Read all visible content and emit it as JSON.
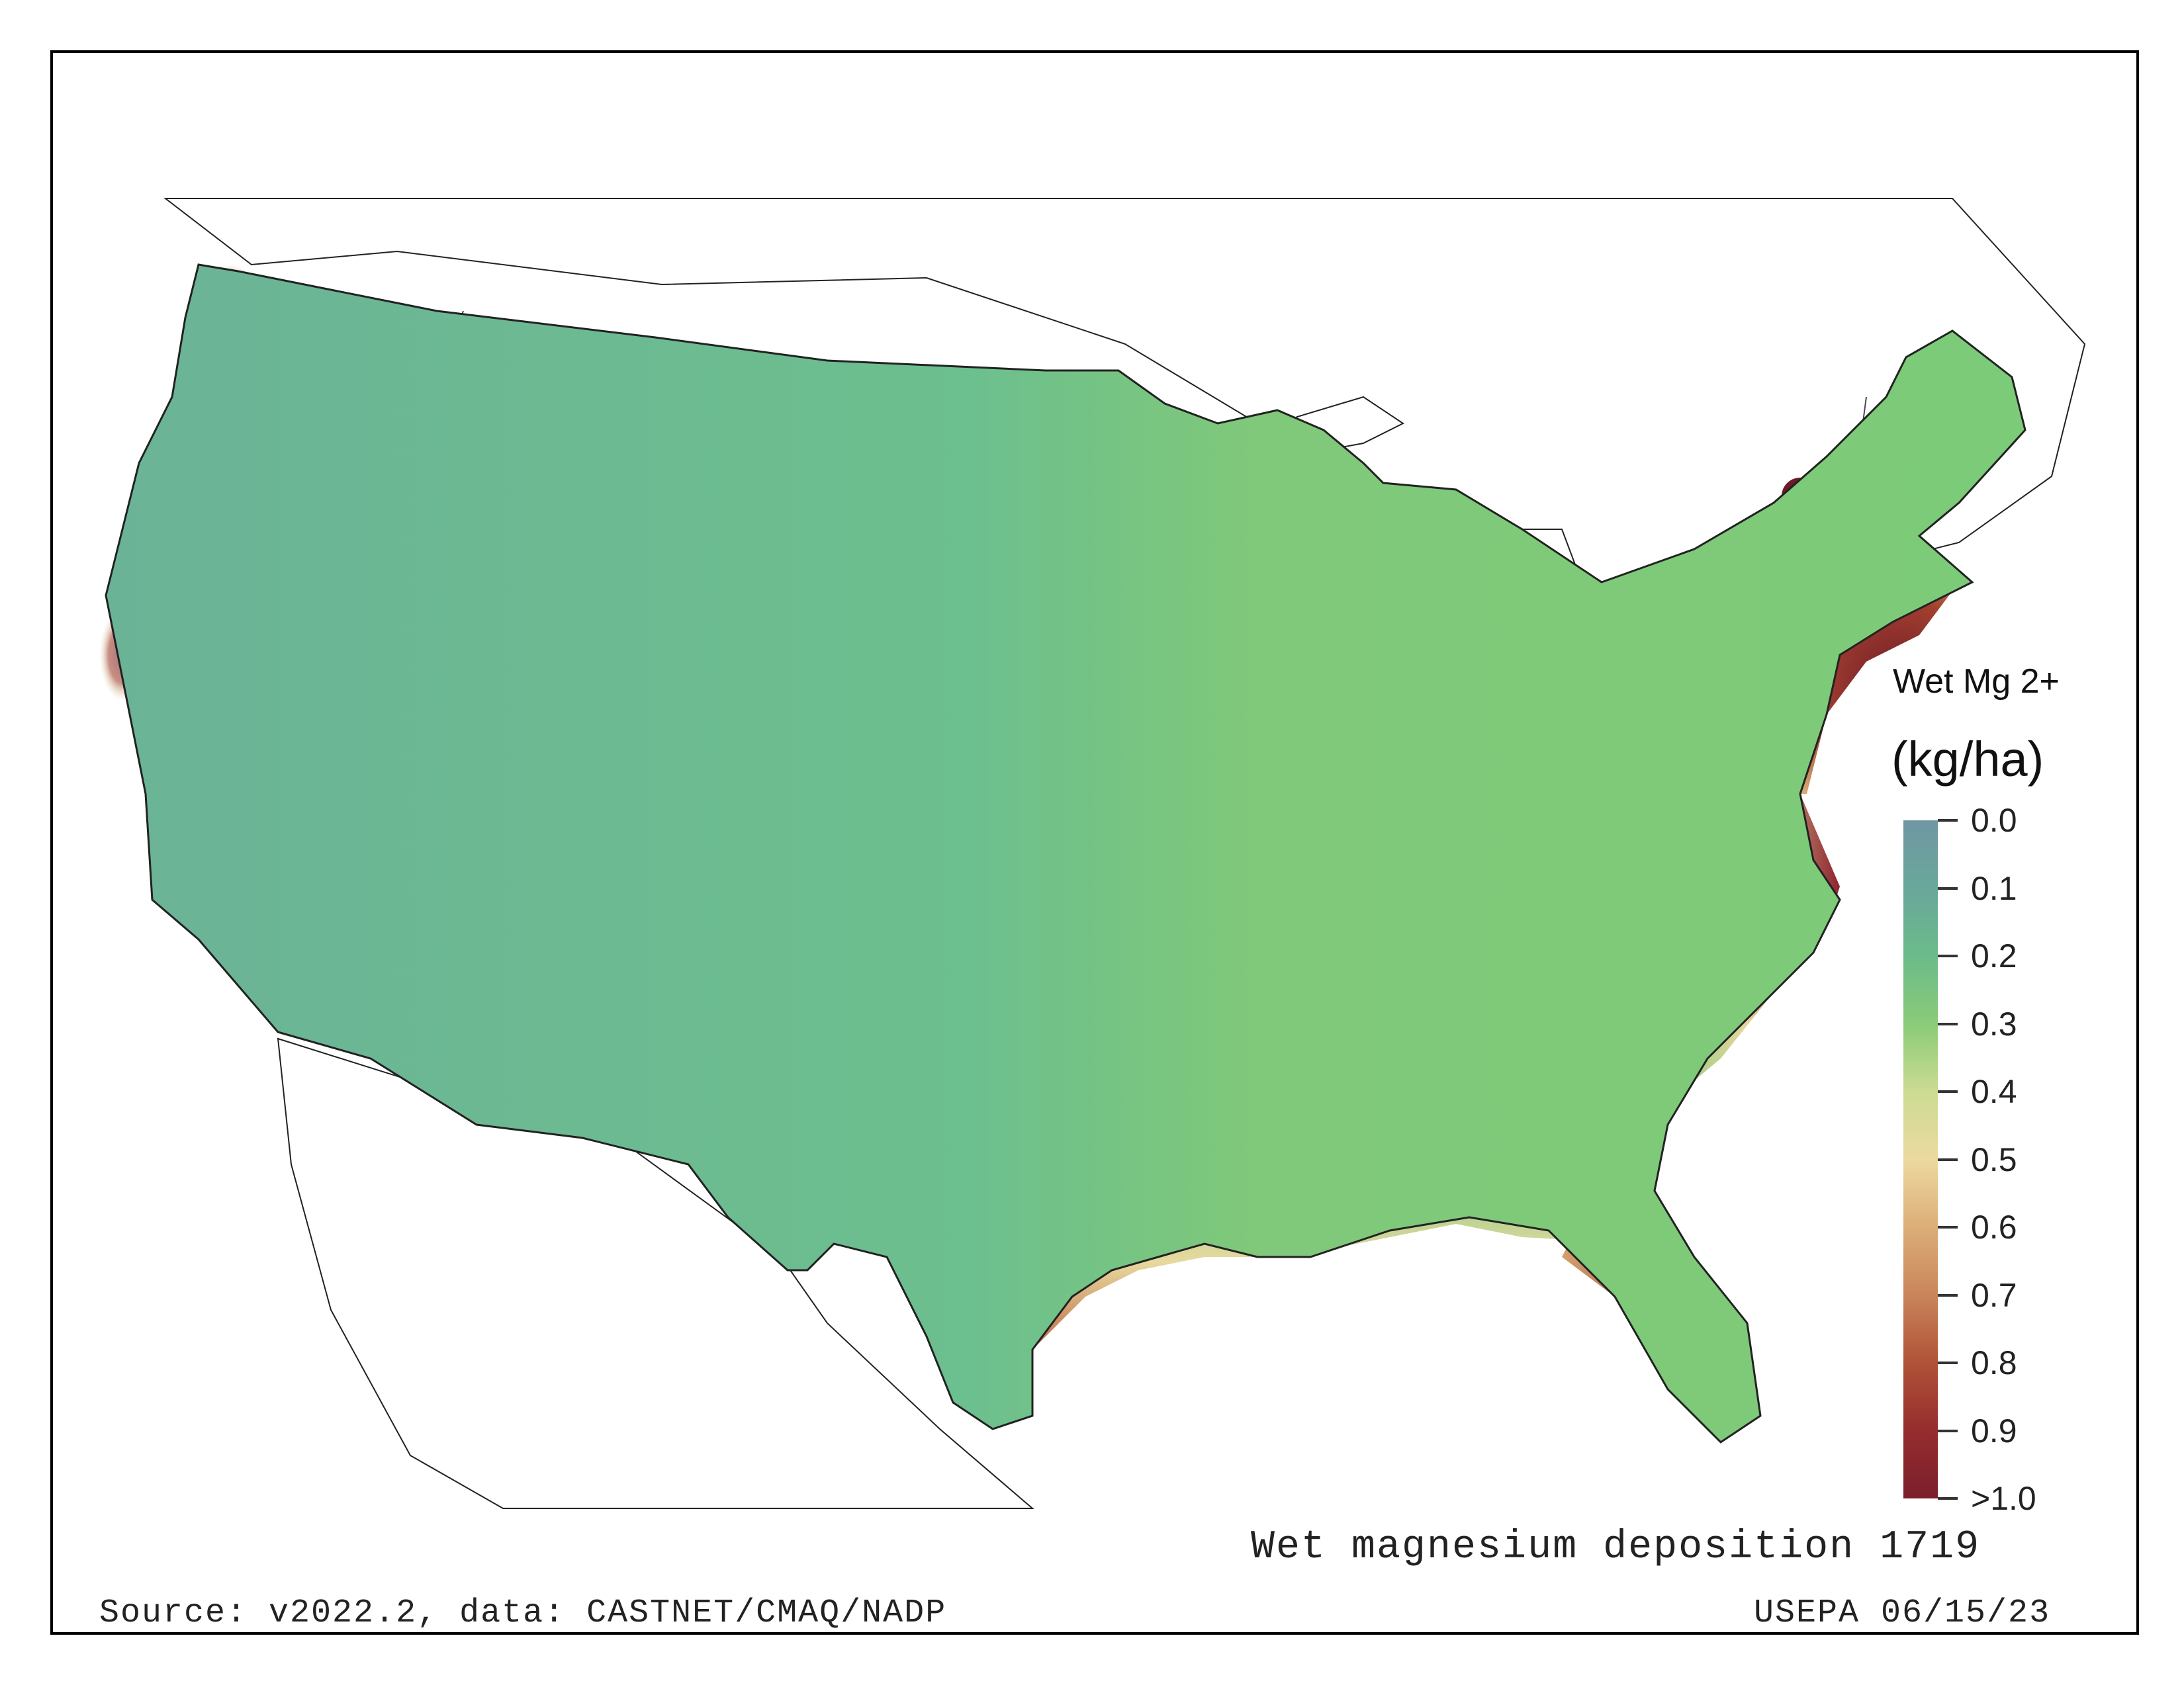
{
  "map": {
    "title": "Wet magnesium deposition 1719",
    "source": "Source: v2022.2, data: CASTNET/CMAQ/NADP",
    "agency": "USEPA 06/15/23"
  },
  "legend": {
    "title_line1": "Wet Mg 2+",
    "title_line2": "(kg/ha)",
    "ticks": [
      "0.0",
      "0.1",
      "0.2",
      "0.3",
      "0.4",
      "0.5",
      "0.6",
      "0.7",
      "0.8",
      "0.9",
      ">1.0"
    ],
    "colors": [
      "#6f97a3",
      "#6aa79b",
      "#6bbb8a",
      "#8acb78",
      "#cbdc92",
      "#ecd9a0",
      "#dcae78",
      "#c9855a",
      "#b05238",
      "#952d2d",
      "#7b1e2d"
    ]
  },
  "colors": {
    "land_base": "#79c87b",
    "west_base": "#6bb397",
    "high_deposition": "#6e1a28",
    "moderate": "#e6d79a",
    "outline": "#222222"
  }
}
